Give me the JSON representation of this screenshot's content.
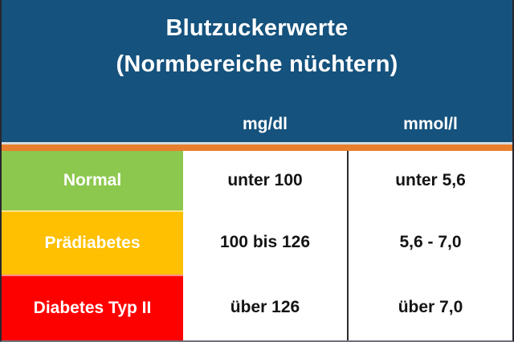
{
  "title": {
    "line1": "Blutzuckerwerte",
    "line2": "(Normbereiche nüchtern)"
  },
  "chart_data": {
    "type": "table",
    "title": "Blutzuckerwerte (Normbereiche nüchtern)",
    "columns": [
      "",
      "mg/dl",
      "mmol/l"
    ],
    "rows": [
      {
        "label": "Normal",
        "mg_dl": "unter 100",
        "mmol_l": "unter 5,6",
        "row_color": "#8cc84e"
      },
      {
        "label": "Prädiabetes",
        "mg_dl": "100 bis 126",
        "mmol_l": "5,6 - 7,0",
        "row_color": "#fec000"
      },
      {
        "label": "Diabetes Typ II",
        "mg_dl": "über 126",
        "mmol_l": "über 7,0",
        "row_color": "#fd0000"
      }
    ]
  },
  "colors": {
    "header_blue": "#15527d",
    "accent_orange": "#e77f2d",
    "normal_green": "#8cc84e",
    "prediabetes_yellow": "#fec000",
    "diabetes_red": "#fd0000",
    "divider_dark": "#2b2b2b"
  }
}
